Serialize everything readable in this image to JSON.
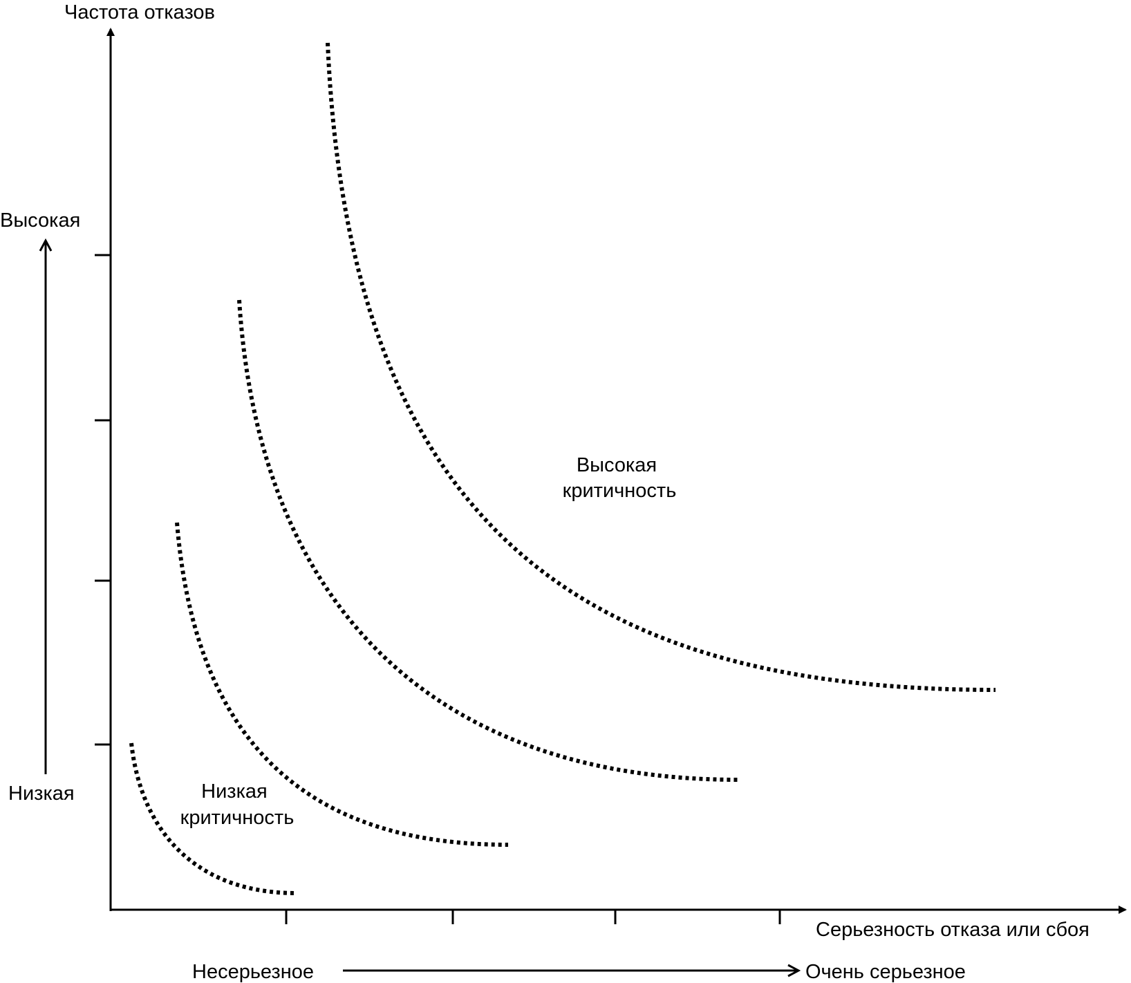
{
  "y_axis": {
    "title": "Частота отказов",
    "high_label": "Высокая",
    "low_label": "Низкая"
  },
  "x_axis": {
    "title": "Серьезность отказа или сбоя",
    "low_label": "Несерьезное",
    "high_label": "Очень серьезное"
  },
  "regions": {
    "high": {
      "line1": "Высокая",
      "line2": "критичность"
    },
    "low": {
      "line1": "Низкая",
      "line2": "критичность"
    }
  },
  "curves_count": 4,
  "colors": {
    "ink": "#000000",
    "background": "#ffffff"
  }
}
